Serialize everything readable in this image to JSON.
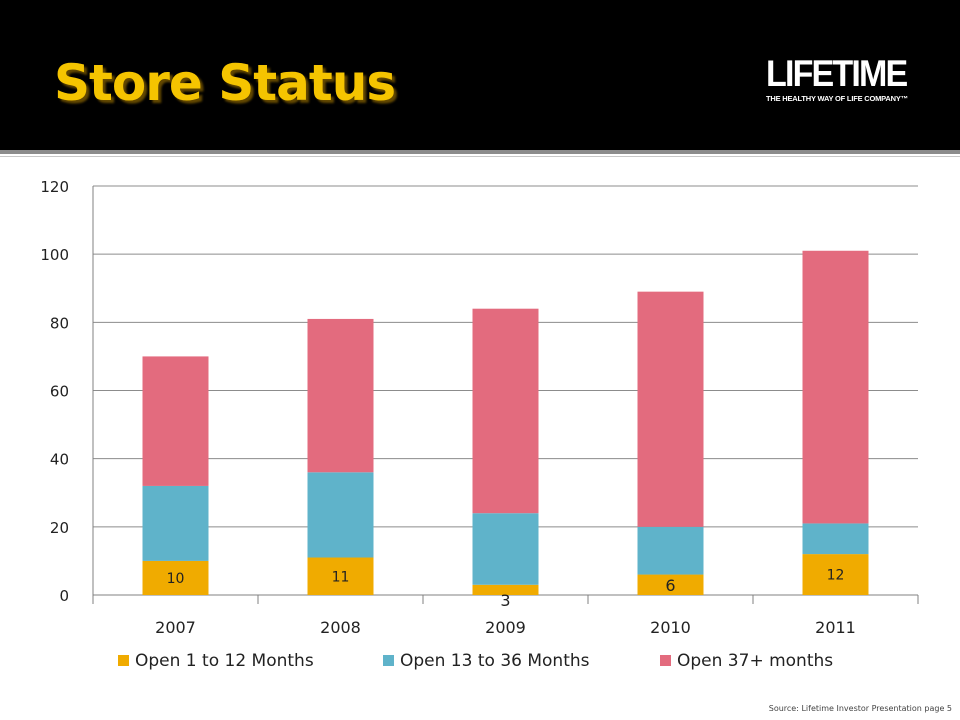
{
  "slide": {
    "title": "Store Status",
    "source": "Source: Lifetime Investor Presentation page 5"
  },
  "logo": {
    "word": "LIFETIME",
    "tagline": "THE HEALTHY WAY OF LIFE COMPANY™"
  },
  "colors": {
    "title": "#f5c400",
    "header_bg": "#000000",
    "series": [
      "#f0ab00",
      "#5fb3ca",
      "#e36b7e"
    ]
  },
  "chart_data": {
    "type": "bar",
    "stacked": true,
    "categories": [
      "2007",
      "2008",
      "2009",
      "2010",
      "2011"
    ],
    "series": [
      {
        "name": "Open 1 to 12 Months",
        "values": [
          10,
          11,
          3,
          6,
          12
        ],
        "labels": [
          "10",
          "11",
          "3",
          "6",
          "12"
        ]
      },
      {
        "name": "Open 13 to 36 Months",
        "values": [
          22,
          25,
          21,
          14,
          9
        ]
      },
      {
        "name": "Open 37+ months",
        "values": [
          38,
          45,
          60,
          69,
          80
        ]
      }
    ],
    "ylim": [
      0,
      120
    ],
    "yticks": [
      "0",
      "20",
      "40",
      "60",
      "80",
      "100",
      "120"
    ],
    "grid": true,
    "legend_position": "bottom"
  }
}
